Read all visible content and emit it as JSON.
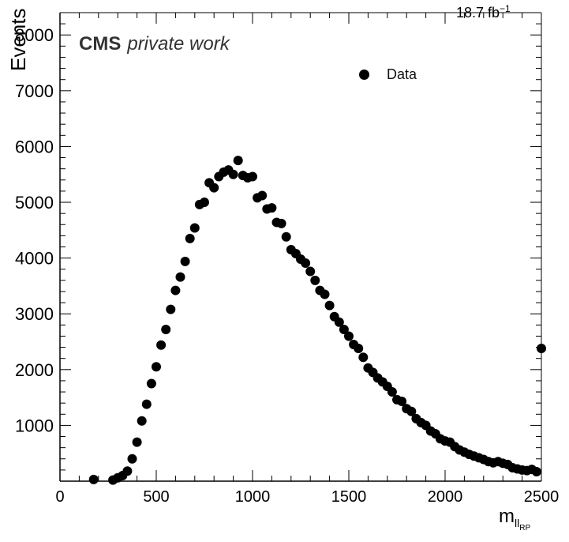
{
  "header": {
    "lumi_value": "18.7 fb",
    "lumi_exp": "−1",
    "cms_label": "CMS",
    "cms_sublabel": "private work"
  },
  "colors": {
    "marker": "#000000",
    "axis": "#000000",
    "background": "#ffffff"
  },
  "chart_data": {
    "type": "scatter",
    "title": "",
    "xlabel": "m",
    "xlabel_sub": "ll",
    "xlabel_subsub": "RP",
    "ylabel": "Events",
    "xlim": [
      0,
      2500
    ],
    "ylim": [
      0,
      8400
    ],
    "xticks": [
      0,
      500,
      1000,
      1500,
      2000,
      2500
    ],
    "yticks": [
      1000,
      2000,
      3000,
      4000,
      5000,
      6000,
      7000,
      8000
    ],
    "grid": false,
    "legend": {
      "placement": "top-right",
      "entries": [
        "Data"
      ]
    },
    "series": [
      {
        "name": "Data",
        "x": [
          175,
          275,
          300,
          325,
          350,
          375,
          400,
          425,
          450,
          475,
          500,
          525,
          550,
          575,
          600,
          625,
          650,
          675,
          700,
          725,
          750,
          775,
          800,
          825,
          850,
          875,
          900,
          925,
          950,
          975,
          1000,
          1025,
          1050,
          1075,
          1100,
          1125,
          1150,
          1175,
          1200,
          1225,
          1250,
          1275,
          1300,
          1325,
          1350,
          1375,
          1400,
          1425,
          1450,
          1475,
          1500,
          1525,
          1550,
          1575,
          1600,
          1625,
          1650,
          1675,
          1700,
          1725,
          1750,
          1775,
          1800,
          1825,
          1850,
          1875,
          1900,
          1925,
          1950,
          1975,
          2000,
          2025,
          2050,
          2075,
          2100,
          2125,
          2150,
          2175,
          2200,
          2225,
          2250,
          2275,
          2300,
          2325,
          2350,
          2375,
          2400,
          2425,
          2450,
          2475,
          2500
        ],
        "y": [
          30,
          20,
          60,
          100,
          180,
          400,
          700,
          1080,
          1380,
          1750,
          2050,
          2440,
          2720,
          3080,
          3420,
          3660,
          3940,
          4350,
          4540,
          4960,
          5000,
          5350,
          5260,
          5460,
          5540,
          5580,
          5500,
          5750,
          5480,
          5440,
          5460,
          5080,
          5120,
          4880,
          4900,
          4640,
          4620,
          4380,
          4150,
          4080,
          3980,
          3910,
          3760,
          3600,
          3420,
          3350,
          3150,
          2950,
          2850,
          2720,
          2600,
          2450,
          2380,
          2220,
          2030,
          1950,
          1850,
          1780,
          1700,
          1600,
          1460,
          1430,
          1300,
          1250,
          1120,
          1050,
          1000,
          900,
          850,
          760,
          720,
          700,
          620,
          560,
          520,
          480,
          450,
          420,
          390,
          350,
          330,
          350,
          320,
          300,
          240,
          220,
          200,
          190,
          210,
          170,
          2380
        ]
      }
    ]
  }
}
